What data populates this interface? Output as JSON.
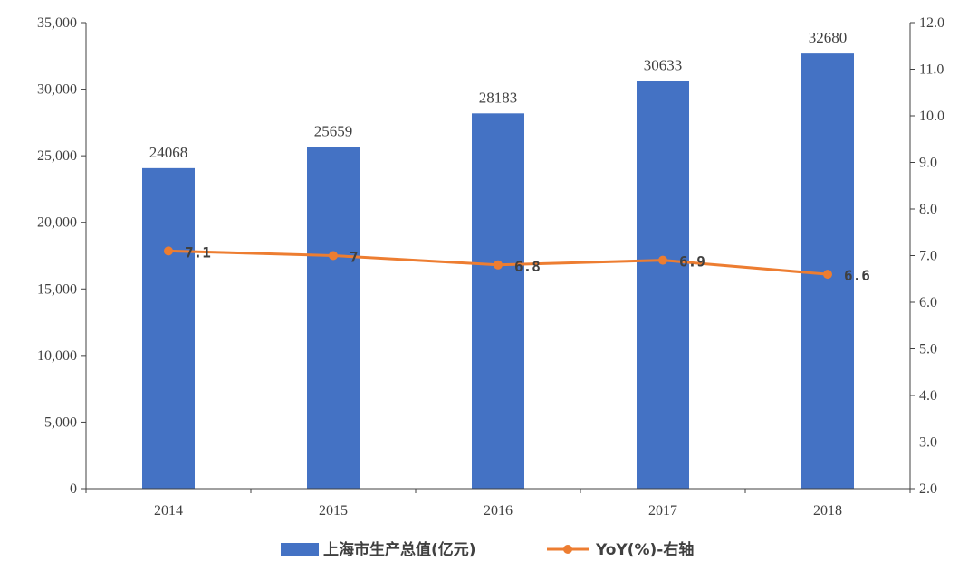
{
  "chart_data": {
    "type": "bar",
    "categories": [
      "2014",
      "2015",
      "2016",
      "2017",
      "2018"
    ],
    "series": [
      {
        "name": "上海市生产总值(亿元)",
        "type": "bar",
        "axis": "left",
        "values": [
          24068,
          25659,
          28183,
          30633,
          32680
        ],
        "data_labels": [
          "24068",
          "25659",
          "28183",
          "30633",
          "32680"
        ],
        "color": "#4472C4"
      },
      {
        "name": "YoY(%)-右轴",
        "type": "line",
        "axis": "right",
        "values": [
          7.1,
          7.0,
          6.8,
          6.9,
          6.6
        ],
        "data_labels": [
          "7.1",
          "7",
          "6.8",
          "6.9",
          "6.6"
        ],
        "color": "#ED7D31"
      }
    ],
    "y_left": {
      "ylim": [
        0,
        35000
      ],
      "ticks": [
        0,
        5000,
        10000,
        15000,
        20000,
        25000,
        30000,
        35000
      ],
      "tick_labels": [
        "0",
        "5,000",
        "10,000",
        "15,000",
        "20,000",
        "25,000",
        "30,000",
        "35,000"
      ]
    },
    "y_right": {
      "ylim": [
        2.0,
        12.0
      ],
      "ticks": [
        2,
        3,
        4,
        5,
        6,
        7,
        8,
        9,
        10,
        11,
        12
      ],
      "tick_labels": [
        "2.0",
        "3.0",
        "4.0",
        "5.0",
        "6.0",
        "7.0",
        "8.0",
        "9.0",
        "10.0",
        "11.0",
        "12.0"
      ]
    },
    "title": "",
    "xlabel": "",
    "ylabel": "",
    "grid": false,
    "legend_position": "bottom",
    "colors": {
      "bar": "#4472C4",
      "line": "#ED7D31",
      "axis": "#404040",
      "text": "#404040"
    }
  }
}
